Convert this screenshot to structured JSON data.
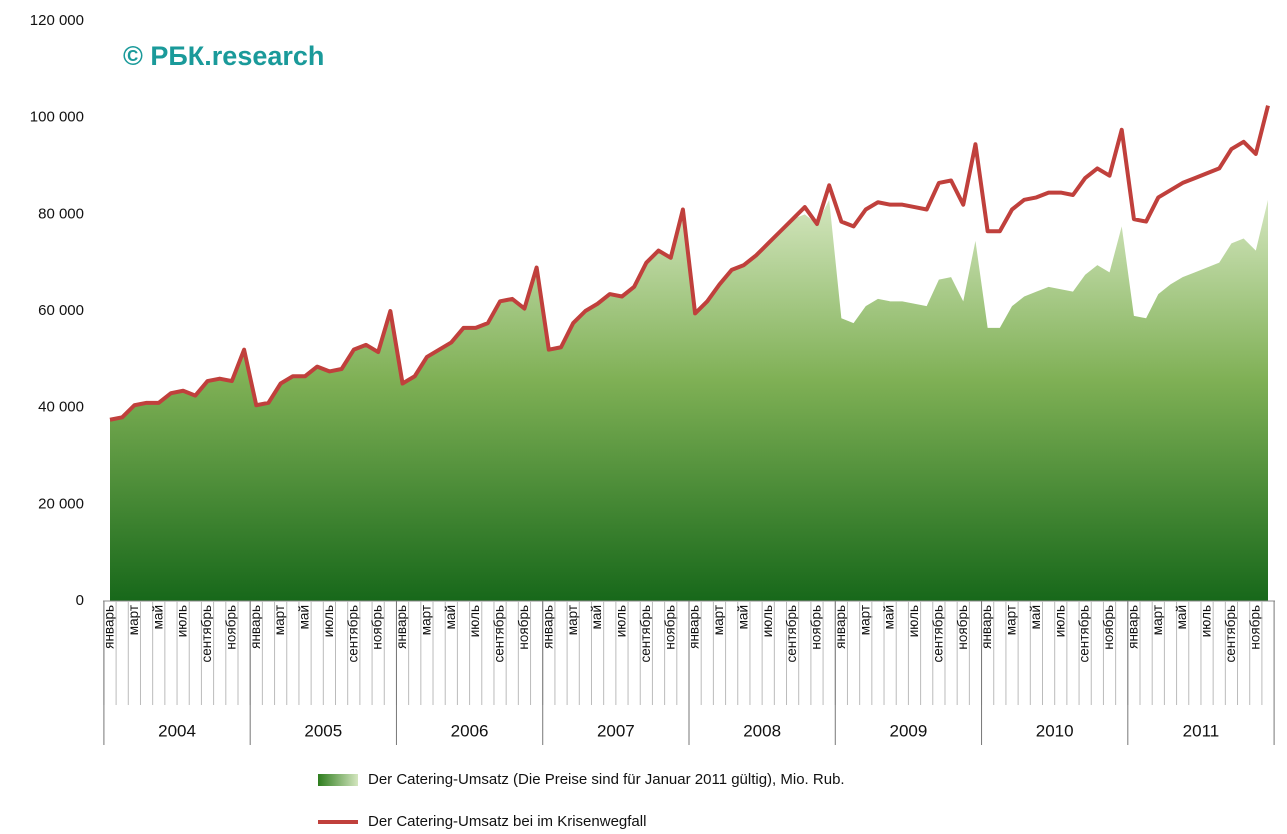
{
  "chart_data": {
    "type": "area_line",
    "annotation": "© РБК.research",
    "categories": [
      "январь",
      null,
      "март",
      null,
      "май",
      null,
      "июль",
      null,
      "сентябрь",
      null,
      "ноябрь",
      null,
      "январь",
      null,
      "март",
      null,
      "май",
      null,
      "июль",
      null,
      "сентябрь",
      null,
      "ноябрь",
      null,
      "январь",
      null,
      "март",
      null,
      "май",
      null,
      "июль",
      null,
      "сентябрь",
      null,
      "ноябрь",
      null,
      "январь",
      null,
      "март",
      null,
      "май",
      null,
      "июль",
      null,
      "сентябрь",
      null,
      "ноябрь",
      null,
      "январь",
      null,
      "март",
      null,
      "май",
      null,
      "июль",
      null,
      "сентябрь",
      null,
      "ноябрь",
      null,
      "январь",
      null,
      "март",
      null,
      "май",
      null,
      "июль",
      null,
      "сентябрь",
      null,
      "ноябрь",
      null,
      "январь",
      null,
      "март",
      null,
      "май",
      null,
      "июль",
      null,
      "сентябрь",
      null,
      "ноябрь",
      null,
      "январь",
      null,
      "март",
      null,
      "май",
      null,
      "июль",
      null,
      "сентябрь",
      null,
      "ноябрь",
      null
    ],
    "groups": [
      "2004",
      "2005",
      "2006",
      "2007",
      "2008",
      "2009",
      "2010",
      "2011"
    ],
    "ylim": [
      0,
      120000
    ],
    "yticks": [
      0,
      {
        "value": 20000,
        "label": "20 000"
      },
      {
        "value": 40000,
        "label": "40 000"
      },
      {
        "value": 60000,
        "label": "60 000"
      },
      {
        "value": 80000,
        "label": "80 000"
      },
      {
        "value": 100000,
        "label": "100 000"
      },
      {
        "value": 120000,
        "label": "120 000"
      }
    ],
    "grid": true,
    "series": [
      {
        "name": "Der Catering-Umsatz (Die Preise sind für Januar 2011 gültig), Mio. Rub.",
        "kind": "area",
        "color": "#2e7d1e",
        "values": [
          37500,
          38000,
          40500,
          41000,
          41000,
          43000,
          43500,
          42500,
          45500,
          46000,
          45500,
          52000,
          40500,
          41000,
          45000,
          46500,
          46500,
          48500,
          47500,
          48000,
          52000,
          53000,
          51500,
          60000,
          45000,
          46500,
          50500,
          52000,
          53500,
          56500,
          56500,
          57500,
          62000,
          62500,
          60500,
          69000,
          52000,
          52500,
          57500,
          60000,
          61500,
          63500,
          63000,
          65000,
          70000,
          72500,
          71000,
          81000,
          59500,
          62000,
          65500,
          68500,
          69500,
          71500,
          74000,
          76500,
          79000,
          80000,
          78000,
          83000,
          58500,
          57500,
          61000,
          62500,
          62000,
          62000,
          61500,
          61000,
          66500,
          67000,
          62000,
          74500,
          56500,
          56500,
          61000,
          63000,
          64000,
          65000,
          64500,
          64000,
          67500,
          69500,
          68000,
          77500,
          59000,
          58500,
          63500,
          65500,
          67000,
          68000,
          69000,
          70000,
          74000,
          75000,
          72500,
          83000
        ]
      },
      {
        "name": "Der Catering-Umsatz bei im Krisenwegfall",
        "kind": "line",
        "color": "#c0403c",
        "values": [
          37500,
          38000,
          40500,
          41000,
          41000,
          43000,
          43500,
          42500,
          45500,
          46000,
          45500,
          52000,
          40500,
          41000,
          45000,
          46500,
          46500,
          48500,
          47500,
          48000,
          52000,
          53000,
          51500,
          60000,
          45000,
          46500,
          50500,
          52000,
          53500,
          56500,
          56500,
          57500,
          62000,
          62500,
          60500,
          69000,
          52000,
          52500,
          57500,
          60000,
          61500,
          63500,
          63000,
          65000,
          70000,
          72500,
          71000,
          81000,
          59500,
          62000,
          65500,
          68500,
          69500,
          71500,
          74000,
          76500,
          79000,
          81500,
          78000,
          86000,
          78500,
          77500,
          81000,
          82500,
          82000,
          82000,
          81500,
          81000,
          86500,
          87000,
          82000,
          94500,
          76500,
          76500,
          81000,
          83000,
          83500,
          84500,
          84500,
          84000,
          87500,
          89500,
          88000,
          97500,
          79000,
          78500,
          83500,
          85000,
          86500,
          87500,
          88500,
          89500,
          93500,
          95000,
          92500,
          102500
        ]
      }
    ]
  }
}
